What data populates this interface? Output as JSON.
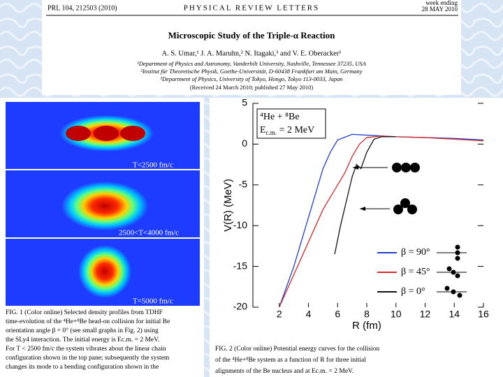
{
  "header": {
    "citation": "PRL 104, 212503 (2010)",
    "journal": "PHYSICAL REVIEW LETTERS",
    "week_label": "week ending",
    "date": "28 MAY 2010"
  },
  "title": "Microscopic Study of the Triple-α Reaction",
  "authors": "A. S. Umar,¹ J. A. Maruhn,² N. Itagaki,³ and V. E. Oberacker¹",
  "affiliations": [
    "¹Department of Physics and Astronomy, Vanderbilt University, Nashville, Tennessee 37235, USA",
    "²Institut für Theoretische Physik, Goethe-Universität, D-60438 Frankfurt am Main, Germany",
    "³Department of Physics, University of Tokyo, Hongo, Tokyo 113-0033, Japan"
  ],
  "received": "(Received 24 March 2010; published 27 May 2010)",
  "panels": [
    "T<2500 fm/c",
    "2500<T<4000 fm/c",
    "T=5000 fm/c"
  ],
  "figure": {
    "xlabel": "R (fm)",
    "ylabel": "V(R) (MeV)",
    "annotation": {
      "line1": "⁴He + ⁸Be",
      "e": "E",
      "sub": "c.m.",
      "rest": " = 2 MeV"
    },
    "xlim": [
      0,
      16
    ],
    "ylim": [
      -20,
      5
    ],
    "xticks": [
      2,
      4,
      6,
      8,
      10,
      12,
      14,
      16
    ],
    "yticks": [
      5,
      0,
      -5,
      -10,
      -15,
      -20
    ],
    "series": [
      {
        "name": "β = 90°",
        "color": "#1f3fcf",
        "x": [
          2,
          3,
          4,
          4.5,
          5,
          5.5,
          6,
          7,
          8,
          10,
          12,
          14,
          16
        ],
        "values": [
          -20,
          -15,
          -9,
          -6,
          -3,
          -1,
          0.5,
          1.2,
          1.1,
          0.9,
          0.8,
          0.7,
          0.5
        ]
      },
      {
        "name": "β = 45°",
        "color": "#d42a2a",
        "x": [
          2,
          3,
          4,
          5,
          6,
          6.5,
          7,
          7.5,
          8,
          9,
          10,
          12,
          14,
          16
        ],
        "values": [
          -20,
          -16,
          -12,
          -8,
          -5,
          -3.5,
          -1.5,
          0,
          0.8,
          1.0,
          0.9,
          0.8,
          0.6,
          0.4
        ]
      },
      {
        "name": "β = 0°",
        "color": "#111111",
        "x": [
          5.8,
          6.2,
          6.6,
          7,
          7.3,
          7.6,
          8,
          8.5,
          9,
          10
        ],
        "values": [
          -13.5,
          -10,
          -7,
          -4,
          -2.5,
          -3,
          -1,
          0.6,
          0.9,
          0.9
        ]
      }
    ]
  },
  "caption_fig1": [
    "FIG. 1 (Color online) Selected density profiles from TDHF",
    "time-evolution of the ⁴He+⁸Be head-on collision for initial Be",
    "orientation angle β = 0° (see small graphs in Fig. 2) using",
    "the SLy4 interaction. The initial energy is Ec.m. = 2 MeV.",
    "For T < 2500 fm/c the system vibrates about the linear chain",
    "configuration shown in the top pane; subsequently the system",
    "changes its mode to a bending configuration shown in the"
  ],
  "caption_fig2": [
    "FIG. 2 (Color online) Potential energy curves for the collision",
    "of the ⁴He+⁸Be system as a function of R for three initial",
    "alignments of the Be nucleus and at Ec.m. = 2 MeV."
  ]
}
